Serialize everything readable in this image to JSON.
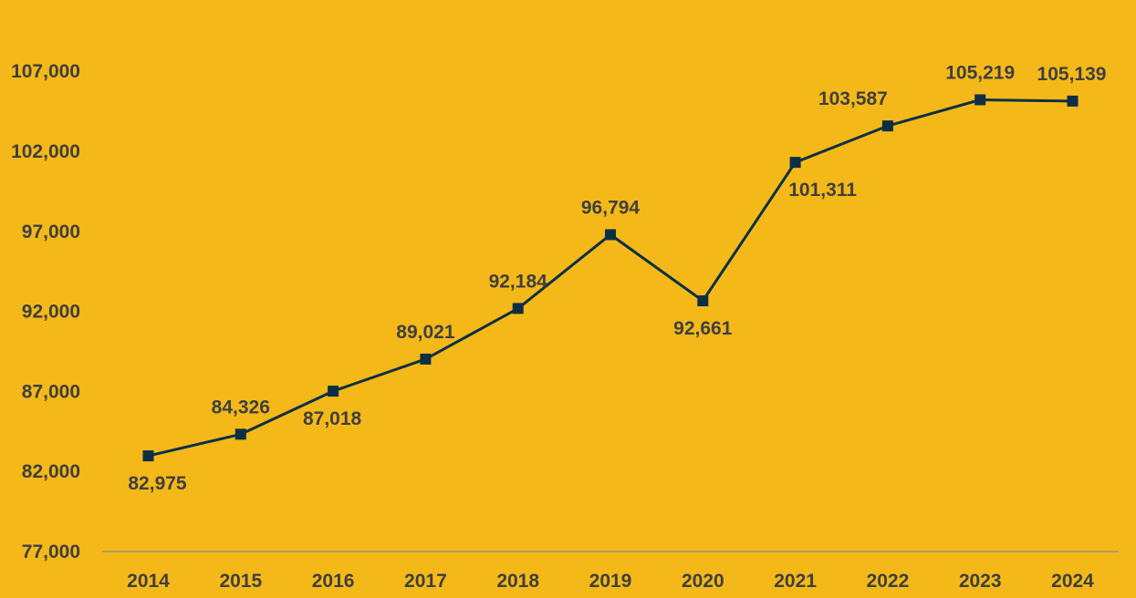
{
  "colors": {
    "background": "#F4B919",
    "line": "#0D2F45",
    "marker": "#0D2F45",
    "text": "#3F3F3F",
    "axis": "#8C8C8C"
  },
  "chart_data": {
    "type": "line",
    "title": "",
    "xlabel": "",
    "ylabel": "",
    "categories": [
      "2014",
      "2015",
      "2016",
      "2017",
      "2018",
      "2019",
      "2020",
      "2021",
      "2022",
      "2023",
      "2024"
    ],
    "series": [
      {
        "values": [
          82975,
          84326,
          87018,
          89021,
          92184,
          96794,
          92661,
          101311,
          103587,
          105219,
          105139
        ],
        "labels": [
          "82,975",
          "84,326",
          "87,018",
          "89,021",
          "92,184",
          "96,794",
          "92,661",
          "101,311",
          "103,587",
          "105,219",
          "105,139"
        ],
        "label_positions": [
          "below",
          "above",
          "below",
          "above",
          "above",
          "above",
          "below",
          "below",
          "above",
          "above",
          "above"
        ],
        "marker": "square"
      }
    ],
    "ylim": [
      77000,
      112000
    ],
    "yticks": [
      77000,
      82000,
      87000,
      92000,
      97000,
      102000,
      107000
    ],
    "ytick_labels": [
      "77,000",
      "82,000",
      "87,000",
      "92,000",
      "97,000",
      "102,000",
      "107,000"
    ],
    "grid": false,
    "legend": "none"
  }
}
